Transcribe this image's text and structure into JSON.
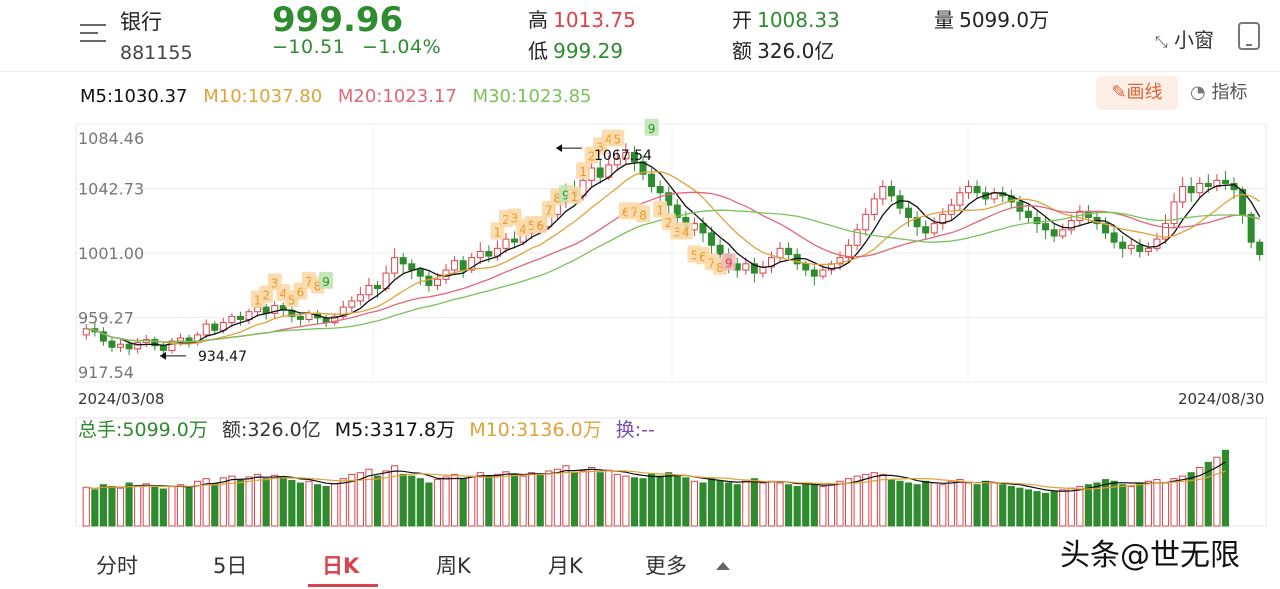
{
  "stock": {
    "name": "银行",
    "code": "881155",
    "price": "999.96",
    "change": "−10.51",
    "change_pct": "−1.04%"
  },
  "quote": {
    "high_label": "高",
    "high": "1013.75",
    "low_label": "低",
    "low": "999.29",
    "open_label": "开",
    "open": "1008.33",
    "amount_label": "额",
    "amount": "326.0亿",
    "volume_label": "量",
    "volume": "5099.0万"
  },
  "toolbar": {
    "widget_label": "小窗",
    "draw_label": "画线",
    "indicator_label": "指标"
  },
  "ma": {
    "m5": "M5:1030.37",
    "m10": "M10:1037.80",
    "m20": "M20:1023.17",
    "m30": "M30:1023.85"
  },
  "colors": {
    "up": "#d9434b",
    "down": "#2e8b2e",
    "m5": "#111111",
    "m10": "#e0a33a",
    "m20": "#e06878",
    "m30": "#7ac25a"
  },
  "dates": {
    "start": "2024/03/08",
    "end": "2024/08/30"
  },
  "volume_header": {
    "total": "总手:5099.0万",
    "amount": "额:326.0亿",
    "m5": "M5:3317.8万",
    "m10": "M10:3136.0万",
    "turnover": "换:--"
  },
  "tabs": [
    "分时",
    "5日",
    "日K",
    "周K",
    "月K",
    "更多"
  ],
  "watermark": "头条@世无限",
  "chart_data": {
    "type": "candlestick",
    "title": "",
    "ylim": [
      917.54,
      1084.46
    ],
    "y_ticks": [
      "1084.46",
      "1042.73",
      "1001.00",
      "959.27",
      "917.54"
    ],
    "annotations": [
      {
        "label": "1067.54",
        "value": 1067.54
      },
      {
        "label": "934.47",
        "value": 934.47
      }
    ],
    "nine_turn_marks": [
      {
        "index": 20,
        "label": "1",
        "color": "orange",
        "value": 971
      },
      {
        "index": 21,
        "label": "2",
        "color": "orange",
        "value": 974
      },
      {
        "index": 22,
        "label": "3",
        "color": "orange",
        "value": 982
      },
      {
        "index": 23,
        "label": "4",
        "color": "orange",
        "value": 975
      },
      {
        "index": 24,
        "label": "5",
        "color": "orange",
        "value": 971
      },
      {
        "index": 25,
        "label": "6",
        "color": "orange",
        "value": 976
      },
      {
        "index": 26,
        "label": "7",
        "color": "orange",
        "value": 983
      },
      {
        "index": 27,
        "label": "8",
        "color": "orange",
        "value": 980
      },
      {
        "index": 28,
        "label": "9",
        "color": "green",
        "value": 983
      },
      {
        "index": 48,
        "label": "1",
        "color": "orange",
        "value": 1015
      },
      {
        "index": 49,
        "label": "2",
        "color": "orange",
        "value": 1023
      },
      {
        "index": 50,
        "label": "3",
        "color": "orange",
        "value": 1024
      },
      {
        "index": 51,
        "label": "4",
        "color": "orange",
        "value": 1017
      },
      {
        "index": 52,
        "label": "5",
        "color": "orange",
        "value": 1019
      },
      {
        "index": 53,
        "label": "6",
        "color": "orange",
        "value": 1019
      },
      {
        "index": 54,
        "label": "7",
        "color": "orange",
        "value": 1029
      },
      {
        "index": 55,
        "label": "8",
        "color": "orange",
        "value": 1037
      },
      {
        "index": 56,
        "label": "9",
        "color": "green",
        "value": 1039
      },
      {
        "index": 57,
        "label": "1",
        "color": "orange",
        "value": 1038
      },
      {
        "index": 58,
        "label": "1",
        "color": "orange",
        "value": 1054
      },
      {
        "index": 59,
        "label": "2",
        "color": "orange",
        "value": 1064
      },
      {
        "index": 60,
        "label": "3",
        "color": "orange",
        "value": 1070
      },
      {
        "index": 61,
        "label": "4",
        "color": "orange",
        "value": 1075
      },
      {
        "index": 62,
        "label": "5",
        "color": "orange",
        "value": 1075
      },
      {
        "index": 63,
        "label": "6",
        "color": "orange",
        "value": 1028
      },
      {
        "index": 64,
        "label": "7",
        "color": "orange",
        "value": 1028
      },
      {
        "index": 65,
        "label": "8",
        "color": "orange",
        "value": 1026
      },
      {
        "index": 66,
        "label": "9",
        "color": "green",
        "value": 1082
      },
      {
        "index": 67,
        "label": "1",
        "color": "orange",
        "value": 1029
      },
      {
        "index": 68,
        "label": "2",
        "color": "orange",
        "value": 1021
      },
      {
        "index": 69,
        "label": "3",
        "color": "orange",
        "value": 1015
      },
      {
        "index": 70,
        "label": "4",
        "color": "orange",
        "value": 1015
      },
      {
        "index": 71,
        "label": "5",
        "color": "orange",
        "value": 1000
      },
      {
        "index": 72,
        "label": "6",
        "color": "orange",
        "value": 999
      },
      {
        "index": 73,
        "label": "7",
        "color": "orange",
        "value": 995
      },
      {
        "index": 74,
        "label": "8",
        "color": "orange",
        "value": 992
      },
      {
        "index": 75,
        "label": "9",
        "color": "red",
        "value": 995
      }
    ],
    "candles": [
      [
        948,
        952,
        945,
        955
      ],
      [
        952,
        950,
        947,
        956
      ],
      [
        950,
        944,
        941,
        953
      ],
      [
        944,
        940,
        937,
        947
      ],
      [
        940,
        942,
        937,
        945
      ],
      [
        942,
        939,
        935,
        944
      ],
      [
        939,
        943,
        936,
        946
      ],
      [
        943,
        945,
        940,
        948
      ],
      [
        945,
        941,
        938,
        947
      ],
      [
        941,
        938,
        934,
        943
      ],
      [
        938,
        944,
        936,
        946
      ],
      [
        944,
        946,
        941,
        949
      ],
      [
        946,
        943,
        940,
        948
      ],
      [
        943,
        948,
        941,
        950
      ],
      [
        948,
        955,
        946,
        958
      ],
      [
        955,
        951,
        948,
        957
      ],
      [
        951,
        956,
        949,
        959
      ],
      [
        956,
        960,
        953,
        962
      ],
      [
        960,
        958,
        954,
        963
      ],
      [
        958,
        963,
        955,
        965
      ],
      [
        963,
        966,
        960,
        969
      ],
      [
        966,
        962,
        958,
        968
      ],
      [
        962,
        967,
        959,
        970
      ],
      [
        967,
        964,
        960,
        969
      ],
      [
        964,
        960,
        956,
        966
      ],
      [
        960,
        958,
        954,
        962
      ],
      [
        958,
        962,
        956,
        964
      ],
      [
        962,
        959,
        955,
        964
      ],
      [
        959,
        956,
        953,
        961
      ],
      [
        956,
        960,
        954,
        962
      ],
      [
        960,
        966,
        958,
        970
      ],
      [
        966,
        970,
        963,
        973
      ],
      [
        970,
        974,
        967,
        979
      ],
      [
        974,
        980,
        971,
        985
      ],
      [
        980,
        978,
        972,
        983
      ],
      [
        978,
        988,
        976,
        993
      ],
      [
        988,
        998,
        985,
        1004
      ],
      [
        998,
        994,
        988,
        1001
      ],
      [
        994,
        990,
        984,
        997
      ],
      [
        990,
        986,
        980,
        992
      ],
      [
        986,
        980,
        976,
        989
      ],
      [
        980,
        984,
        977,
        988
      ],
      [
        984,
        990,
        981,
        994
      ],
      [
        990,
        996,
        987,
        999
      ],
      [
        996,
        990,
        985,
        999
      ],
      [
        990,
        998,
        988,
        1001
      ],
      [
        998,
        1002,
        994,
        1008
      ],
      [
        1002,
        999,
        995,
        1006
      ],
      [
        999,
        1004,
        996,
        1009
      ],
      [
        1004,
        1010,
        1001,
        1014
      ],
      [
        1010,
        1008,
        1004,
        1015
      ],
      [
        1008,
        1014,
        1006,
        1018
      ],
      [
        1014,
        1020,
        1010,
        1024
      ],
      [
        1020,
        1018,
        1013,
        1024
      ],
      [
        1018,
        1026,
        1016,
        1030
      ],
      [
        1026,
        1034,
        1022,
        1038
      ],
      [
        1034,
        1042,
        1030,
        1046
      ],
      [
        1042,
        1038,
        1033,
        1048
      ],
      [
        1038,
        1048,
        1035,
        1054
      ],
      [
        1048,
        1056,
        1044,
        1060
      ],
      [
        1056,
        1050,
        1046,
        1062
      ],
      [
        1050,
        1058,
        1048,
        1064
      ],
      [
        1058,
        1062,
        1054,
        1068
      ],
      [
        1062,
        1066,
        1058,
        1072
      ],
      [
        1066,
        1060,
        1054,
        1070
      ],
      [
        1060,
        1052,
        1048,
        1064
      ],
      [
        1052,
        1044,
        1040,
        1056
      ],
      [
        1044,
        1040,
        1034,
        1048
      ],
      [
        1040,
        1032,
        1026,
        1044
      ],
      [
        1032,
        1024,
        1018,
        1036
      ],
      [
        1024,
        1016,
        1010,
        1028
      ],
      [
        1016,
        1020,
        1012,
        1024
      ],
      [
        1020,
        1014,
        1008,
        1024
      ],
      [
        1014,
        1006,
        1000,
        1018
      ],
      [
        1006,
        1000,
        994,
        1010
      ],
      [
        1000,
        994,
        988,
        1004
      ],
      [
        994,
        990,
        985,
        998
      ],
      [
        990,
        994,
        987,
        998
      ],
      [
        994,
        988,
        982,
        998
      ],
      [
        988,
        992,
        985,
        996
      ],
      [
        992,
        998,
        988,
        1002
      ],
      [
        998,
        1004,
        995,
        1008
      ],
      [
        1004,
        1000,
        996,
        1008
      ],
      [
        1000,
        994,
        990,
        1004
      ],
      [
        994,
        990,
        986,
        996
      ],
      [
        990,
        986,
        980,
        993
      ],
      [
        986,
        990,
        984,
        994
      ],
      [
        990,
        994,
        987,
        996
      ],
      [
        994,
        998,
        990,
        1002
      ],
      [
        998,
        1006,
        995,
        1010
      ],
      [
        1006,
        1016,
        1003,
        1020
      ],
      [
        1016,
        1026,
        1012,
        1030
      ],
      [
        1026,
        1036,
        1022,
        1040
      ],
      [
        1036,
        1044,
        1032,
        1048
      ],
      [
        1044,
        1038,
        1034,
        1048
      ],
      [
        1038,
        1030,
        1026,
        1042
      ],
      [
        1030,
        1024,
        1018,
        1034
      ],
      [
        1024,
        1018,
        1012,
        1028
      ],
      [
        1018,
        1014,
        1010,
        1022
      ],
      [
        1014,
        1020,
        1012,
        1024
      ],
      [
        1020,
        1026,
        1016,
        1030
      ],
      [
        1026,
        1032,
        1022,
        1036
      ],
      [
        1032,
        1040,
        1028,
        1044
      ],
      [
        1040,
        1044,
        1036,
        1048
      ],
      [
        1044,
        1040,
        1036,
        1048
      ],
      [
        1040,
        1036,
        1032,
        1044
      ],
      [
        1036,
        1040,
        1033,
        1043
      ],
      [
        1040,
        1038,
        1034,
        1044
      ],
      [
        1038,
        1034,
        1030,
        1042
      ],
      [
        1034,
        1028,
        1022,
        1038
      ],
      [
        1028,
        1024,
        1020,
        1032
      ],
      [
        1024,
        1020,
        1014,
        1028
      ],
      [
        1020,
        1016,
        1010,
        1024
      ],
      [
        1016,
        1012,
        1008,
        1020
      ],
      [
        1012,
        1016,
        1010,
        1020
      ],
      [
        1016,
        1022,
        1013,
        1026
      ],
      [
        1022,
        1028,
        1018,
        1032
      ],
      [
        1028,
        1024,
        1020,
        1032
      ],
      [
        1024,
        1020,
        1016,
        1028
      ],
      [
        1020,
        1014,
        1010,
        1024
      ],
      [
        1014,
        1008,
        1004,
        1018
      ],
      [
        1008,
        1004,
        998,
        1012
      ],
      [
        1004,
        1006,
        1000,
        1010
      ],
      [
        1006,
        1002,
        998,
        1010
      ],
      [
        1002,
        1004,
        999,
        1008
      ],
      [
        1004,
        1010,
        1002,
        1014
      ],
      [
        1010,
        1020,
        1007,
        1026
      ],
      [
        1020,
        1034,
        1017,
        1040
      ],
      [
        1034,
        1044,
        1030,
        1050
      ],
      [
        1044,
        1040,
        1034,
        1050
      ],
      [
        1040,
        1046,
        1037,
        1050
      ],
      [
        1046,
        1044,
        1040,
        1052
      ],
      [
        1044,
        1048,
        1041,
        1052
      ],
      [
        1048,
        1046,
        1042,
        1054
      ],
      [
        1046,
        1042,
        1036,
        1050
      ],
      [
        1042,
        1026,
        1020,
        1044
      ],
      [
        1026,
        1008,
        1004,
        1028
      ],
      [
        1008,
        1000,
        996,
        1010
      ]
    ],
    "volume_pane": {
      "ylim": [
        0,
        100
      ],
      "volumes": [
        45,
        42,
        48,
        46,
        44,
        50,
        47,
        49,
        45,
        43,
        46,
        48,
        44,
        52,
        55,
        49,
        56,
        58,
        54,
        57,
        60,
        55,
        59,
        57,
        53,
        50,
        52,
        48,
        46,
        49,
        55,
        60,
        62,
        66,
        58,
        64,
        70,
        60,
        58,
        55,
        50,
        54,
        57,
        60,
        55,
        58,
        62,
        58,
        60,
        63,
        60,
        58,
        62,
        60,
        64,
        66,
        70,
        62,
        64,
        68,
        62,
        65,
        60,
        58,
        56,
        55,
        60,
        58,
        62,
        58,
        56,
        52,
        50,
        55,
        52,
        50,
        48,
        52,
        55,
        50,
        52,
        50,
        48,
        46,
        50,
        48,
        46,
        48,
        52,
        55,
        58,
        60,
        62,
        60,
        54,
        52,
        50,
        48,
        52,
        50,
        48,
        52,
        54,
        50,
        48,
        52,
        50,
        48,
        46,
        44,
        42,
        40,
        38,
        40,
        42,
        44,
        46,
        48,
        50,
        54,
        52,
        48,
        46,
        50,
        52,
        54,
        50,
        55,
        58,
        62,
        68,
        74,
        80,
        88
      ]
    }
  }
}
